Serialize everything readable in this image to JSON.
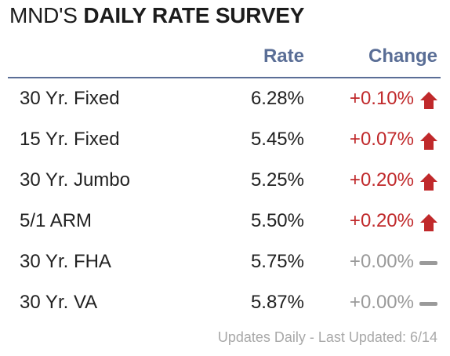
{
  "title": {
    "prefix": "MND'S",
    "emphasis": "DAILY RATE SURVEY"
  },
  "headers": {
    "rate": "Rate",
    "change": "Change"
  },
  "rows": [
    {
      "product": "30 Yr. Fixed",
      "rate": "6.28%",
      "change": "+0.10%",
      "direction": "up"
    },
    {
      "product": "15 Yr. Fixed",
      "rate": "5.45%",
      "change": "+0.07%",
      "direction": "up"
    },
    {
      "product": "30 Yr. Jumbo",
      "rate": "5.25%",
      "change": "+0.20%",
      "direction": "up"
    },
    {
      "product": "5/1 ARM",
      "rate": "5.50%",
      "change": "+0.20%",
      "direction": "up"
    },
    {
      "product": "30 Yr. FHA",
      "rate": "5.75%",
      "change": "+0.00%",
      "direction": "flat"
    },
    {
      "product": "30 Yr. VA",
      "rate": "5.87%",
      "change": "+0.00%",
      "direction": "flat"
    }
  ],
  "footer": "Updates Daily - Last Updated: 6/14",
  "colors": {
    "accent": "#5a6e96",
    "up": "#c0292b",
    "flat": "#9a9a9a"
  },
  "icons": {
    "up": "arrow-up-icon",
    "flat": "dash-icon"
  }
}
